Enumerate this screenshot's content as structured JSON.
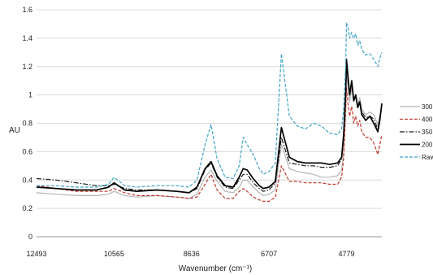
{
  "chart_data": {
    "type": "line",
    "xlabel": "Wavenumber (cm⁻¹)",
    "ylabel": "AU",
    "xlim": [
      12493,
      3900
    ],
    "ylim": [
      0,
      1.6
    ],
    "x_ticks": [
      12493,
      10565,
      8636,
      6707,
      4779
    ],
    "y_ticks": [
      0,
      0.2,
      0.4,
      0.6,
      0.8,
      1,
      1.2,
      1.4,
      1.6
    ],
    "y_tick_labels": [
      "0",
      "0.2",
      "0.4",
      "0.6",
      "0.8",
      "1",
      "1.2",
      "1.4",
      "1.6"
    ],
    "grid": true,
    "legend_position": "right",
    "series": [
      {
        "name": "300",
        "color": "#b5b5b5",
        "dash": "solid",
        "x": [
          12493,
          12000,
          11500,
          11000,
          10700,
          10565,
          10300,
          10000,
          9500,
          9000,
          8700,
          8500,
          8300,
          8150,
          8000,
          7800,
          7600,
          7450,
          7350,
          7250,
          7100,
          6950,
          6850,
          6707,
          6550,
          6400,
          6200,
          6000,
          5800,
          5600,
          5400,
          5200,
          5000,
          4900,
          4850,
          4800,
          4779,
          4740,
          4700,
          4650,
          4600,
          4550,
          4500,
          4450,
          4400,
          4300,
          4200,
          4100,
          4000,
          3950,
          3900
        ],
        "y": [
          0.31,
          0.3,
          0.29,
          0.29,
          0.3,
          0.32,
          0.29,
          0.28,
          0.29,
          0.28,
          0.27,
          0.3,
          0.42,
          0.47,
          0.39,
          0.32,
          0.31,
          0.35,
          0.4,
          0.4,
          0.35,
          0.31,
          0.29,
          0.3,
          0.33,
          0.65,
          0.48,
          0.46,
          0.45,
          0.44,
          0.42,
          0.42,
          0.43,
          0.47,
          0.6,
          0.9,
          1.15,
          1.05,
          0.95,
          1.05,
          0.95,
          0.98,
          0.92,
          0.98,
          0.9,
          0.86,
          0.88,
          0.86,
          0.79,
          0.85,
          0.9
        ]
      },
      {
        "name": "400",
        "color": "#c0392b",
        "dash": "dashed",
        "x": [
          12493,
          12000,
          11500,
          11000,
          10700,
          10565,
          10300,
          10000,
          9500,
          9000,
          8700,
          8500,
          8300,
          8150,
          8000,
          7800,
          7600,
          7450,
          7350,
          7250,
          7100,
          6950,
          6850,
          6707,
          6550,
          6400,
          6200,
          6000,
          5800,
          5600,
          5400,
          5200,
          5000,
          4900,
          4850,
          4800,
          4779,
          4740,
          4700,
          4650,
          4600,
          4550,
          4500,
          4450,
          4400,
          4300,
          4200,
          4100,
          4000,
          3950,
          3900
        ],
        "y": [
          0.36,
          0.34,
          0.32,
          0.32,
          0.32,
          0.34,
          0.31,
          0.29,
          0.29,
          0.28,
          0.27,
          0.28,
          0.37,
          0.44,
          0.33,
          0.27,
          0.27,
          0.32,
          0.34,
          0.32,
          0.28,
          0.26,
          0.25,
          0.25,
          0.28,
          0.5,
          0.39,
          0.39,
          0.38,
          0.38,
          0.38,
          0.37,
          0.37,
          0.42,
          0.55,
          0.88,
          1.05,
          0.93,
          0.85,
          0.92,
          0.8,
          0.85,
          0.78,
          0.82,
          0.74,
          0.7,
          0.7,
          0.66,
          0.58,
          0.65,
          0.72
        ]
      },
      {
        "name": "350",
        "color": "#1a1a1a",
        "dash": "dashdot",
        "x": [
          12493,
          12000,
          11500,
          11000,
          10700,
          10565,
          10300,
          10000,
          9500,
          9000,
          8700,
          8500,
          8300,
          8150,
          8000,
          7800,
          7600,
          7450,
          7350,
          7250,
          7100,
          6950,
          6850,
          6707,
          6550,
          6400,
          6200,
          6000,
          5800,
          5600,
          5400,
          5200,
          5000,
          4900,
          4850,
          4800,
          4779,
          4740,
          4700,
          4650,
          4600,
          4550,
          4500,
          4450,
          4400,
          4300,
          4200,
          4100,
          4000,
          3950,
          3900
        ],
        "y": [
          0.41,
          0.4,
          0.38,
          0.36,
          0.36,
          0.37,
          0.34,
          0.33,
          0.33,
          0.32,
          0.31,
          0.34,
          0.47,
          0.52,
          0.42,
          0.35,
          0.34,
          0.4,
          0.44,
          0.44,
          0.38,
          0.34,
          0.32,
          0.33,
          0.38,
          0.7,
          0.52,
          0.51,
          0.5,
          0.5,
          0.49,
          0.49,
          0.5,
          0.55,
          0.7,
          1.0,
          1.2,
          1.1,
          1.0,
          1.1,
          0.97,
          1.0,
          0.92,
          0.96,
          0.88,
          0.84,
          0.85,
          0.83,
          0.76,
          0.84,
          0.92
        ]
      },
      {
        "name": "200",
        "color": "#000000",
        "dash": "solid",
        "x": [
          12493,
          12000,
          11500,
          11000,
          10700,
          10565,
          10300,
          10000,
          9500,
          9000,
          8700,
          8500,
          8300,
          8150,
          8000,
          7800,
          7600,
          7450,
          7350,
          7250,
          7100,
          6950,
          6850,
          6707,
          6550,
          6400,
          6200,
          6000,
          5800,
          5600,
          5400,
          5200,
          5000,
          4900,
          4850,
          4800,
          4779,
          4740,
          4700,
          4650,
          4600,
          4550,
          4500,
          4450,
          4400,
          4300,
          4200,
          4100,
          4000,
          3950,
          3900
        ],
        "y": [
          0.35,
          0.34,
          0.33,
          0.33,
          0.35,
          0.38,
          0.33,
          0.32,
          0.33,
          0.32,
          0.31,
          0.35,
          0.48,
          0.53,
          0.43,
          0.36,
          0.35,
          0.42,
          0.48,
          0.47,
          0.41,
          0.36,
          0.34,
          0.35,
          0.39,
          0.77,
          0.56,
          0.53,
          0.52,
          0.52,
          0.52,
          0.51,
          0.52,
          0.56,
          0.72,
          1.02,
          1.25,
          1.12,
          1.0,
          1.1,
          0.96,
          1.0,
          0.91,
          0.95,
          0.86,
          0.82,
          0.85,
          0.8,
          0.74,
          0.82,
          0.94
        ]
      },
      {
        "name": "Raw",
        "color": "#3fa3c8",
        "dash": "dashed",
        "x": [
          12493,
          12000,
          11500,
          11000,
          10700,
          10565,
          10300,
          10000,
          9500,
          9000,
          8700,
          8500,
          8300,
          8150,
          8000,
          7800,
          7600,
          7450,
          7350,
          7250,
          7100,
          6950,
          6850,
          6707,
          6550,
          6400,
          6200,
          6000,
          5800,
          5600,
          5400,
          5200,
          5000,
          4900,
          4850,
          4800,
          4779,
          4740,
          4700,
          4650,
          4600,
          4550,
          4500,
          4450,
          4400,
          4300,
          4200,
          4100,
          4000,
          3950,
          3900
        ],
        "y": [
          0.36,
          0.36,
          0.35,
          0.35,
          0.37,
          0.42,
          0.36,
          0.35,
          0.36,
          0.36,
          0.35,
          0.4,
          0.65,
          0.79,
          0.55,
          0.42,
          0.41,
          0.5,
          0.7,
          0.65,
          0.58,
          0.48,
          0.44,
          0.46,
          0.52,
          1.29,
          0.85,
          0.78,
          0.76,
          0.8,
          0.78,
          0.73,
          0.72,
          0.76,
          0.9,
          1.2,
          1.51,
          1.47,
          1.4,
          1.44,
          1.4,
          1.43,
          1.35,
          1.38,
          1.32,
          1.28,
          1.29,
          1.25,
          1.2,
          1.26,
          1.3
        ]
      }
    ]
  }
}
